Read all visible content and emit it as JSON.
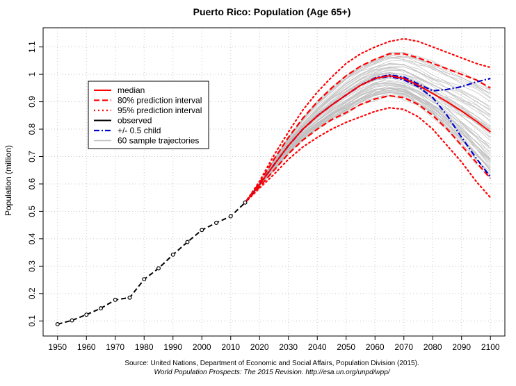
{
  "chart_data": {
    "type": "line",
    "title": "Puerto Rico: Population (Age 65+)",
    "xlabel": "",
    "ylabel": "Population (million)",
    "xlim": [
      1945,
      2105
    ],
    "ylim": [
      0.045,
      1.17
    ],
    "grid": true,
    "x_ticks": [
      1950,
      1960,
      1970,
      1980,
      1990,
      2000,
      2010,
      2020,
      2030,
      2040,
      2050,
      2060,
      2070,
      2080,
      2090,
      2100
    ],
    "y_ticks": [
      0.1,
      0.2,
      0.3,
      0.4,
      0.5,
      0.6,
      0.7,
      0.8,
      0.9,
      1.0,
      1.1
    ],
    "y_tick_labels": [
      "0.1",
      "0.2",
      "0.3",
      "0.4",
      "0.5",
      "0.6",
      "0.7",
      "0.8",
      "0.9",
      "1",
      "1.1"
    ],
    "legend_position": "top-left",
    "legend": [
      {
        "label": "median",
        "color": "#ff0000",
        "style": "solid"
      },
      {
        "label": "80% prediction interval",
        "color": "#ff0000",
        "style": "dashed"
      },
      {
        "label": "95% prediction interval",
        "color": "#ff0000",
        "style": "dotted"
      },
      {
        "label": "observed",
        "color": "#000000",
        "style": "solid"
      },
      {
        "label": "+/- 0.5 child",
        "color": "#0000cc",
        "style": "dashdot"
      },
      {
        "label": "60 sample trajectories",
        "color": "#bebebe",
        "style": "solid"
      }
    ],
    "series": [
      {
        "name": "observed",
        "color": "#000000",
        "style": "dashed-points",
        "x": [
          1950,
          1955,
          1960,
          1965,
          1970,
          1975,
          1980,
          1985,
          1990,
          1995,
          2000,
          2005,
          2010,
          2015
        ],
        "y": [
          0.088,
          0.102,
          0.123,
          0.146,
          0.177,
          0.185,
          0.252,
          0.292,
          0.342,
          0.388,
          0.432,
          0.458,
          0.482,
          0.532
        ]
      },
      {
        "name": "median",
        "color": "#ff0000",
        "style": "solid",
        "x": [
          2015,
          2020,
          2025,
          2030,
          2035,
          2040,
          2045,
          2050,
          2055,
          2060,
          2065,
          2070,
          2075,
          2080,
          2085,
          2090,
          2095,
          2100
        ],
        "y": [
          0.532,
          0.598,
          0.67,
          0.74,
          0.8,
          0.848,
          0.888,
          0.925,
          0.96,
          0.985,
          0.995,
          0.985,
          0.96,
          0.93,
          0.9,
          0.866,
          0.83,
          0.79
        ]
      },
      {
        "name": "80% prediction interval upper",
        "color": "#ff0000",
        "style": "dashed",
        "x": [
          2015,
          2020,
          2025,
          2030,
          2035,
          2040,
          2045,
          2050,
          2055,
          2060,
          2065,
          2070,
          2075,
          2080,
          2085,
          2090,
          2095,
          2100
        ],
        "y": [
          0.532,
          0.605,
          0.69,
          0.77,
          0.84,
          0.9,
          0.95,
          0.995,
          1.03,
          1.055,
          1.075,
          1.075,
          1.06,
          1.04,
          1.02,
          1.0,
          0.98,
          0.95
        ]
      },
      {
        "name": "80% prediction interval lower",
        "color": "#ff0000",
        "style": "dashed",
        "x": [
          2015,
          2020,
          2025,
          2030,
          2035,
          2040,
          2045,
          2050,
          2055,
          2060,
          2065,
          2070,
          2075,
          2080,
          2085,
          2090,
          2095,
          2100
        ],
        "y": [
          0.532,
          0.59,
          0.65,
          0.71,
          0.76,
          0.8,
          0.835,
          0.86,
          0.89,
          0.91,
          0.922,
          0.915,
          0.89,
          0.85,
          0.8,
          0.74,
          0.68,
          0.62
        ]
      },
      {
        "name": "95% prediction interval upper",
        "color": "#ff0000",
        "style": "dotted",
        "x": [
          2015,
          2020,
          2025,
          2030,
          2035,
          2040,
          2045,
          2050,
          2055,
          2060,
          2065,
          2070,
          2075,
          2080,
          2085,
          2090,
          2095,
          2100
        ],
        "y": [
          0.532,
          0.61,
          0.705,
          0.79,
          0.87,
          0.935,
          0.99,
          1.04,
          1.075,
          1.1,
          1.12,
          1.13,
          1.12,
          1.1,
          1.08,
          1.06,
          1.04,
          1.025
        ]
      },
      {
        "name": "95% prediction interval lower",
        "color": "#ff0000",
        "style": "dotted",
        "x": [
          2015,
          2020,
          2025,
          2030,
          2035,
          2040,
          2045,
          2050,
          2055,
          2060,
          2065,
          2070,
          2075,
          2080,
          2085,
          2090,
          2095,
          2100
        ],
        "y": [
          0.532,
          0.585,
          0.635,
          0.69,
          0.735,
          0.77,
          0.8,
          0.825,
          0.845,
          0.865,
          0.878,
          0.872,
          0.845,
          0.8,
          0.74,
          0.68,
          0.61,
          0.55
        ]
      },
      {
        "name": "+/- 0.5 child upper",
        "color": "#0000cc",
        "style": "dashdot",
        "x": [
          2015,
          2020,
          2025,
          2030,
          2035,
          2040,
          2045,
          2050,
          2055,
          2060,
          2065,
          2070,
          2075,
          2080,
          2085,
          2090,
          2095,
          2100
        ],
        "y": [
          0.532,
          0.598,
          0.67,
          0.74,
          0.8,
          0.848,
          0.888,
          0.925,
          0.96,
          0.987,
          0.998,
          0.99,
          0.965,
          0.94,
          0.945,
          0.955,
          0.972,
          0.985
        ]
      },
      {
        "name": "+/- 0.5 child lower",
        "color": "#0000cc",
        "style": "dashdot",
        "x": [
          2015,
          2020,
          2025,
          2030,
          2035,
          2040,
          2045,
          2050,
          2055,
          2060,
          2065,
          2070,
          2075,
          2080,
          2085,
          2090,
          2095,
          2100
        ],
        "y": [
          0.532,
          0.598,
          0.67,
          0.74,
          0.8,
          0.848,
          0.888,
          0.925,
          0.96,
          0.984,
          0.993,
          0.98,
          0.955,
          0.915,
          0.85,
          0.77,
          0.695,
          0.625
        ]
      }
    ]
  },
  "source": {
    "line1": "Source: United Nations, Department of Economic and Social Affairs, Population Division (2015).",
    "line2": "World Population Prospects: The 2015 Revision. http://esa.un.org/unpd/wpp/"
  }
}
